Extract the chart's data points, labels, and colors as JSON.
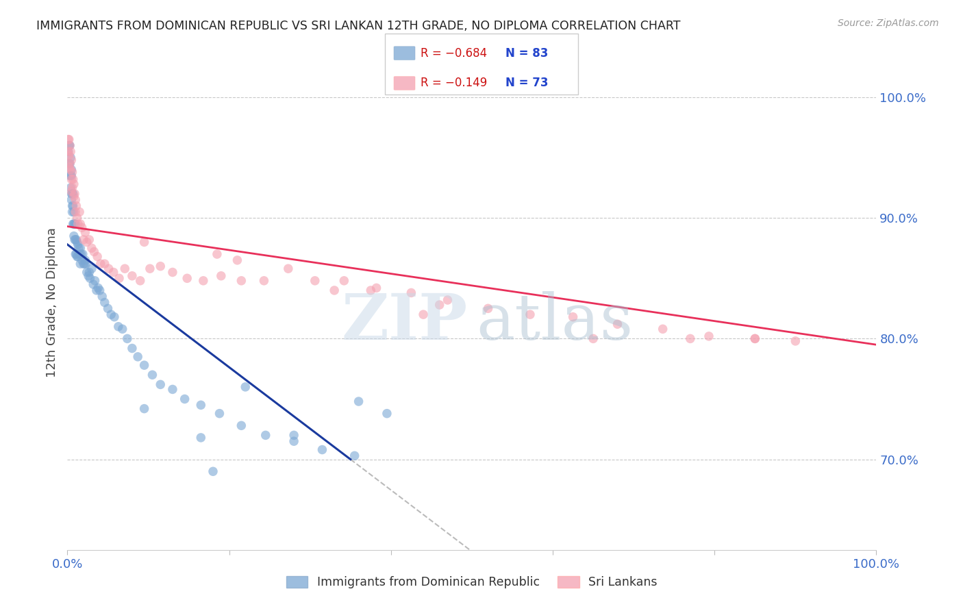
{
  "title": "IMMIGRANTS FROM DOMINICAN REPUBLIC VS SRI LANKAN 12TH GRADE, NO DIPLOMA CORRELATION CHART",
  "source": "Source: ZipAtlas.com",
  "ylabel": "12th Grade, No Diploma",
  "watermark_zip": "ZIP",
  "watermark_atlas": "atlas",
  "legend_blue_r": "R = −0.684",
  "legend_blue_n": "N = 83",
  "legend_pink_r": "R = −0.149",
  "legend_pink_n": "N = 73",
  "xmin": 0.0,
  "xmax": 1.0,
  "ymin": 0.625,
  "ymax": 1.035,
  "yticks": [
    0.7,
    0.8,
    0.9,
    1.0
  ],
  "ytick_labels": [
    "70.0%",
    "80.0%",
    "90.0%",
    "100.0%"
  ],
  "xticks": [
    0.0,
    0.2,
    0.4,
    0.6,
    0.8,
    1.0
  ],
  "xtick_labels": [
    "0.0%",
    "",
    "",
    "",
    "",
    "100.0%"
  ],
  "blue_color": "#7BA7D4",
  "pink_color": "#F4A0B0",
  "blue_line_color": "#1A3A9E",
  "pink_line_color": "#E8305A",
  "axis_color": "#3B6CC9",
  "grid_color": "#C8C8C8",
  "title_color": "#222222",
  "blue_line_x0": 0.0,
  "blue_line_y0": 0.878,
  "blue_line_x1": 0.35,
  "blue_line_y1": 0.7,
  "pink_line_x0": 0.0,
  "pink_line_y0": 0.893,
  "pink_line_x1": 1.0,
  "pink_line_y1": 0.795,
  "blue_scatter_x": [
    0.001,
    0.002,
    0.002,
    0.003,
    0.003,
    0.003,
    0.004,
    0.004,
    0.004,
    0.005,
    0.005,
    0.005,
    0.005,
    0.006,
    0.006,
    0.006,
    0.007,
    0.007,
    0.007,
    0.008,
    0.008,
    0.008,
    0.009,
    0.009,
    0.01,
    0.01,
    0.01,
    0.011,
    0.011,
    0.012,
    0.012,
    0.013,
    0.013,
    0.014,
    0.015,
    0.016,
    0.016,
    0.017,
    0.018,
    0.019,
    0.02,
    0.021,
    0.022,
    0.023,
    0.024,
    0.026,
    0.027,
    0.028,
    0.03,
    0.032,
    0.034,
    0.036,
    0.038,
    0.04,
    0.043,
    0.046,
    0.05,
    0.054,
    0.058,
    0.063,
    0.068,
    0.074,
    0.08,
    0.087,
    0.095,
    0.105,
    0.115,
    0.13,
    0.145,
    0.165,
    0.188,
    0.215,
    0.245,
    0.28,
    0.315,
    0.355,
    0.395,
    0.165,
    0.22,
    0.095,
    0.28,
    0.18,
    0.36
  ],
  "blue_scatter_y": [
    0.955,
    0.96,
    0.945,
    0.96,
    0.945,
    0.935,
    0.95,
    0.935,
    0.925,
    0.94,
    0.92,
    0.915,
    0.935,
    0.92,
    0.91,
    0.905,
    0.92,
    0.91,
    0.895,
    0.905,
    0.895,
    0.885,
    0.895,
    0.882,
    0.895,
    0.882,
    0.87,
    0.882,
    0.87,
    0.88,
    0.868,
    0.878,
    0.868,
    0.875,
    0.87,
    0.875,
    0.862,
    0.87,
    0.865,
    0.87,
    0.862,
    0.862,
    0.865,
    0.862,
    0.855,
    0.852,
    0.855,
    0.85,
    0.858,
    0.845,
    0.848,
    0.84,
    0.842,
    0.84,
    0.835,
    0.83,
    0.825,
    0.82,
    0.818,
    0.81,
    0.808,
    0.8,
    0.792,
    0.785,
    0.778,
    0.77,
    0.762,
    0.758,
    0.75,
    0.745,
    0.738,
    0.728,
    0.72,
    0.715,
    0.708,
    0.703,
    0.738,
    0.718,
    0.76,
    0.742,
    0.72,
    0.69,
    0.748
  ],
  "pink_scatter_x": [
    0.001,
    0.001,
    0.002,
    0.002,
    0.002,
    0.003,
    0.003,
    0.004,
    0.004,
    0.005,
    0.005,
    0.005,
    0.006,
    0.006,
    0.007,
    0.008,
    0.008,
    0.009,
    0.01,
    0.01,
    0.011,
    0.012,
    0.013,
    0.015,
    0.016,
    0.018,
    0.02,
    0.022,
    0.024,
    0.027,
    0.03,
    0.033,
    0.037,
    0.041,
    0.046,
    0.051,
    0.057,
    0.064,
    0.071,
    0.08,
    0.09,
    0.102,
    0.115,
    0.13,
    0.148,
    0.168,
    0.19,
    0.215,
    0.243,
    0.273,
    0.306,
    0.342,
    0.382,
    0.425,
    0.47,
    0.52,
    0.572,
    0.625,
    0.68,
    0.736,
    0.793,
    0.85,
    0.9,
    0.21,
    0.095,
    0.33,
    0.46,
    0.185,
    0.44,
    0.375,
    0.65,
    0.77,
    0.85
  ],
  "pink_scatter_y": [
    0.965,
    0.955,
    0.965,
    0.952,
    0.942,
    0.96,
    0.945,
    0.955,
    0.94,
    0.948,
    0.932,
    0.922,
    0.938,
    0.925,
    0.932,
    0.928,
    0.918,
    0.92,
    0.915,
    0.905,
    0.91,
    0.9,
    0.895,
    0.905,
    0.895,
    0.892,
    0.882,
    0.888,
    0.88,
    0.882,
    0.875,
    0.872,
    0.868,
    0.862,
    0.862,
    0.858,
    0.855,
    0.85,
    0.858,
    0.852,
    0.848,
    0.858,
    0.86,
    0.855,
    0.85,
    0.848,
    0.852,
    0.848,
    0.848,
    0.858,
    0.848,
    0.848,
    0.842,
    0.838,
    0.832,
    0.825,
    0.82,
    0.818,
    0.812,
    0.808,
    0.802,
    0.8,
    0.798,
    0.865,
    0.88,
    0.84,
    0.828,
    0.87,
    0.82,
    0.84,
    0.8,
    0.8,
    0.8
  ]
}
